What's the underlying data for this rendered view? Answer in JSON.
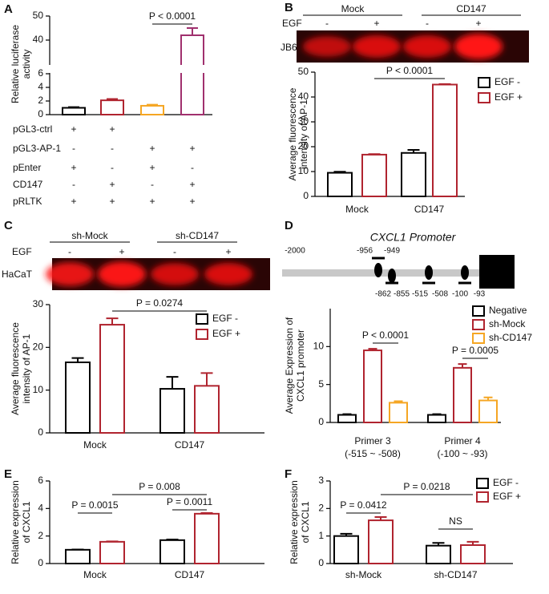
{
  "chart_data": [
    {
      "type": "bar",
      "panel": "A",
      "y_label": [
        "Relative luciferase",
        "activity"
      ],
      "series": [
        {
          "colors": [
            "#000000",
            "#b0242f",
            "#f5a623",
            "#a0306e"
          ],
          "values": [
            1.0,
            2.1,
            1.3,
            42
          ],
          "errors": [
            0.1,
            0.2,
            0.15,
            3
          ]
        }
      ],
      "ylim": [
        0,
        50
      ],
      "yticks": [
        0,
        2,
        4,
        6,
        40,
        50
      ],
      "axis_break": [
        6,
        30
      ],
      "annotations": [
        "P < 0.0001"
      ],
      "table": {
        "rows": [
          {
            "label": "pGL3-ctrl",
            "signs": [
              "+",
              "+",
              null,
              null
            ]
          },
          {
            "label": "pGL3-AP-1",
            "signs": [
              "-",
              "-",
              "+",
              "+"
            ]
          },
          {
            "label": "pEnter",
            "signs": [
              "+",
              "-",
              "+",
              "-"
            ]
          },
          {
            "label": "CD147",
            "signs": [
              "-",
              "+",
              "-",
              "+"
            ]
          },
          {
            "label": "pRLTK",
            "signs": [
              "+",
              "+",
              "+",
              "+"
            ]
          }
        ]
      }
    },
    {
      "type": "bar",
      "panel": "B",
      "y_label": [
        "Average fluorescence",
        "intensity of AP-1"
      ],
      "categories": [
        "Mock",
        "CD147"
      ],
      "series": [
        {
          "name": "EGF -",
          "color": "#000000",
          "values": [
            9.5,
            17.5
          ],
          "errors": [
            0.4,
            1.2
          ]
        },
        {
          "name": "EGF +",
          "color": "#b0242f",
          "values": [
            16.8,
            45
          ],
          "errors": [
            0.2,
            0.2
          ]
        }
      ],
      "ylim": [
        0,
        50
      ],
      "yticks": [
        0,
        10,
        20,
        30,
        40,
        50
      ],
      "annotations": [
        "P < 0.0001"
      ],
      "blot": {
        "groups": [
          "Mock",
          "CD147"
        ],
        "treatment": "EGF",
        "signs": [
          "-",
          "+",
          "-",
          "+"
        ],
        "cell_line": "JB6"
      }
    },
    {
      "type": "bar",
      "panel": "C",
      "y_label": [
        "Average fluorescence",
        "intensity of AP-1"
      ],
      "categories": [
        "Mock",
        "CD147"
      ],
      "series": [
        {
          "name": "EGF -",
          "color": "#000000",
          "values": [
            16.5,
            10.3
          ],
          "errors": [
            1.0,
            2.8
          ]
        },
        {
          "name": "EGF +",
          "color": "#b0242f",
          "values": [
            25.3,
            11.0
          ],
          "errors": [
            1.5,
            3.0
          ]
        }
      ],
      "ylim": [
        0,
        30
      ],
      "yticks": [
        0,
        10,
        20,
        30
      ],
      "annotations": [
        "P = 0.0274"
      ],
      "blot": {
        "groups": [
          "sh-Mock",
          "sh-CD147"
        ],
        "treatment": "EGF",
        "signs": [
          "-",
          "+",
          "-",
          "+"
        ],
        "cell_line": "HaCaT"
      }
    },
    {
      "type": "bar",
      "panel": "D",
      "y_label": [
        "Average Expression of",
        "CXCL1 promoter"
      ],
      "categories": [
        "Primer 3",
        "Primer 4"
      ],
      "category_sublabels": [
        "(-515 ~ -508)",
        "(-100 ~ -93)"
      ],
      "series": [
        {
          "name": "Negative",
          "color": "#000000",
          "values": [
            1.0,
            1.0
          ],
          "errors": [
            0.1,
            0.1
          ]
        },
        {
          "name": "sh-Mock",
          "color": "#b0242f",
          "values": [
            9.5,
            7.2
          ],
          "errors": [
            0.2,
            0.5
          ]
        },
        {
          "name": "sh-CD147",
          "color": "#f5a623",
          "values": [
            2.6,
            2.9
          ],
          "errors": [
            0.2,
            0.4
          ]
        }
      ],
      "ylim": [
        0,
        15
      ],
      "yticks": [
        0,
        5,
        10
      ],
      "annotations": [
        "P < 0.0001",
        "P = 0.0005"
      ],
      "promoter": {
        "title": "CXCL1 Promoter",
        "start": "-2000",
        "sites": [
          "-956",
          "-949",
          "-862",
          "-855",
          "-515",
          "-508",
          "-100",
          "-93"
        ]
      }
    },
    {
      "type": "bar",
      "panel": "E",
      "y_label": [
        "Relative expression",
        "of CXCL1"
      ],
      "categories": [
        "Mock",
        "CD147"
      ],
      "series": [
        {
          "color": "#000000",
          "values": [
            1.0,
            1.7
          ],
          "errors": [
            0.02,
            0.05
          ]
        },
        {
          "color": "#b0242f",
          "values": [
            1.58,
            3.62
          ],
          "errors": [
            0.03,
            0.05
          ]
        }
      ],
      "ylim": [
        0,
        6
      ],
      "yticks": [
        0,
        2,
        4,
        6
      ],
      "annotations": [
        "P = 0.0015",
        "P = 0.0011",
        "P = 0.008"
      ]
    },
    {
      "type": "bar",
      "panel": "F",
      "y_label": [
        "Relative expression",
        "of CXCL1"
      ],
      "categories": [
        "sh-Mock",
        "sh-CD147"
      ],
      "series": [
        {
          "name": "EGF -",
          "color": "#000000",
          "values": [
            1.0,
            0.65
          ],
          "errors": [
            0.08,
            0.1
          ]
        },
        {
          "name": "EGF +",
          "color": "#b0242f",
          "values": [
            1.57,
            0.67
          ],
          "errors": [
            0.12,
            0.12
          ]
        }
      ],
      "ylim": [
        0,
        3
      ],
      "yticks": [
        0,
        1,
        2,
        3
      ],
      "annotations": [
        "P = 0.0412",
        "NS",
        "P = 0.0218"
      ]
    }
  ]
}
